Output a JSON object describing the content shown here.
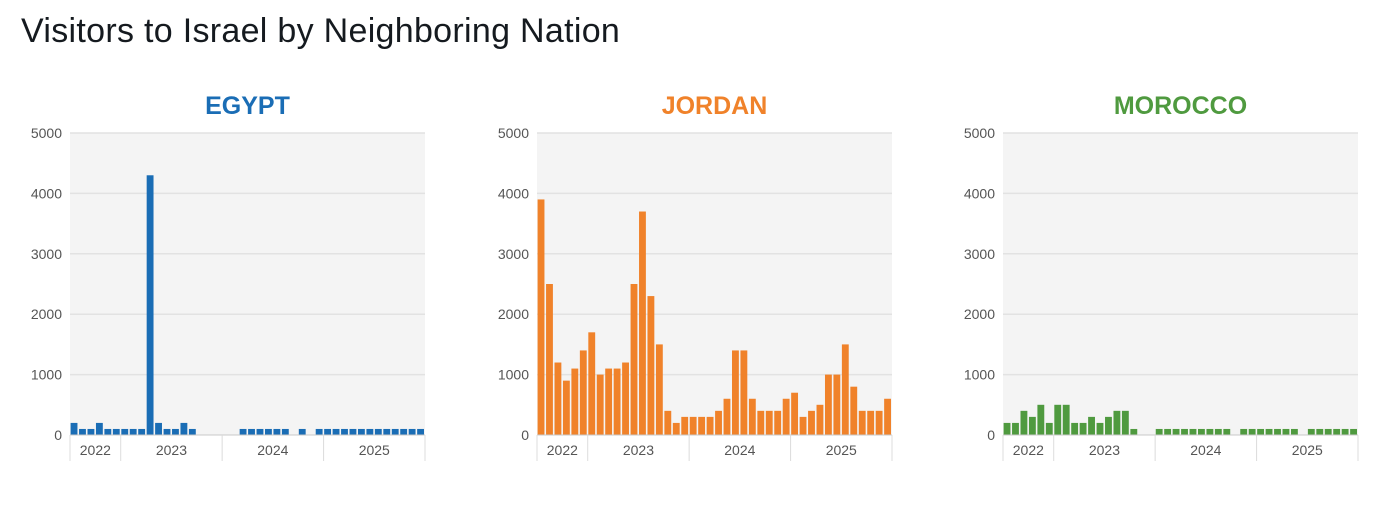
{
  "title": "Visitors to Israel by Neighboring Nation",
  "chart_data": [
    {
      "type": "bar",
      "title": "EGYPT",
      "color": "#1a6db5",
      "ylim": [
        0,
        5000
      ],
      "yticks": [
        0,
        1000,
        2000,
        3000,
        4000,
        5000
      ],
      "xticks": [
        "2022",
        "2023",
        "2024",
        "2025"
      ],
      "x_start": "2022-07",
      "x_end": "2025-12",
      "grid": true,
      "values": [
        200,
        100,
        100,
        200,
        100,
        100,
        100,
        100,
        100,
        4300,
        200,
        100,
        100,
        200,
        100,
        0,
        0,
        0,
        0,
        0,
        100,
        100,
        100,
        100,
        100,
        100,
        0,
        100,
        0,
        100,
        100,
        100,
        100,
        100,
        100,
        100,
        100,
        100,
        100,
        100,
        100,
        100
      ]
    },
    {
      "type": "bar",
      "title": "JORDAN",
      "color": "#f0822a",
      "ylim": [
        0,
        5000
      ],
      "yticks": [
        0,
        1000,
        2000,
        3000,
        4000,
        5000
      ],
      "xticks": [
        "2022",
        "2023",
        "2024",
        "2025"
      ],
      "x_start": "2022-07",
      "x_end": "2025-12",
      "grid": true,
      "values": [
        3900,
        2500,
        1200,
        900,
        1100,
        1400,
        1700,
        1000,
        1100,
        1100,
        1200,
        2500,
        3700,
        2300,
        1500,
        400,
        200,
        300,
        300,
        300,
        300,
        400,
        600,
        1400,
        1400,
        600,
        400,
        400,
        400,
        600,
        700,
        300,
        400,
        500,
        1000,
        1000,
        1500,
        800,
        400,
        400,
        400,
        600
      ]
    },
    {
      "type": "bar",
      "title": "MOROCCO",
      "color": "#4f9a3f",
      "ylim": [
        0,
        5000
      ],
      "yticks": [
        0,
        1000,
        2000,
        3000,
        4000,
        5000
      ],
      "xticks": [
        "2022",
        "2023",
        "2024",
        "2025"
      ],
      "x_start": "2022-07",
      "x_end": "2025-12",
      "grid": true,
      "values": [
        200,
        200,
        400,
        300,
        500,
        200,
        500,
        500,
        200,
        200,
        300,
        200,
        300,
        400,
        400,
        100,
        0,
        0,
        100,
        100,
        100,
        100,
        100,
        100,
        100,
        100,
        100,
        0,
        100,
        100,
        100,
        100,
        100,
        100,
        100,
        0,
        100,
        100,
        100,
        100,
        100,
        100
      ]
    }
  ]
}
